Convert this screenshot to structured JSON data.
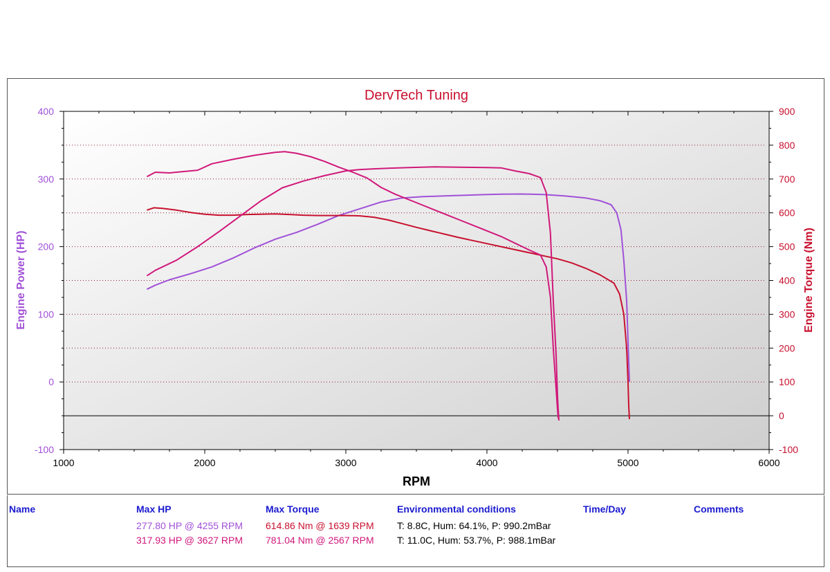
{
  "chart_data": {
    "type": "line",
    "title": "DervTech Tuning",
    "xlabel": "RPM",
    "ylabel_left": "Engine Power (HP)",
    "ylabel_right": "Engine Torque (Nm)",
    "xlim": [
      1000,
      6000
    ],
    "x_ticks": [
      1000,
      2000,
      3000,
      4000,
      5000,
      6000
    ],
    "ylim_left": [
      -100,
      400
    ],
    "y_ticks_left": [
      -100,
      0,
      100,
      200,
      300,
      400
    ],
    "ylim_right": [
      -100,
      900
    ],
    "y_ticks_right": [
      -100,
      0,
      100,
      200,
      300,
      400,
      500,
      600,
      700,
      800,
      900
    ],
    "grid": true,
    "colors": {
      "title": "#c8102e",
      "left_axis": "#a050d8",
      "right_axis": "#c8102e",
      "run1_power": "#a050d8",
      "run1_torque": "#c8102e",
      "run2_power": "#d0187a",
      "run2_torque": "#d0187a"
    },
    "series": [
      {
        "axis": "left",
        "color": "#a050d8",
        "x": [
          1590,
          1650,
          1750,
          1900,
          2050,
          2200,
          2350,
          2500,
          2650,
          2800,
          2950,
          3100,
          3250,
          3400,
          3550,
          3700,
          3850,
          4000,
          4100,
          4255,
          4400,
          4550,
          4700,
          4800,
          4880,
          4920,
          4950,
          4970,
          4990,
          5000,
          5010
        ],
        "y": [
          137,
          143,
          151,
          160,
          170,
          183,
          198,
          211,
          221,
          233,
          246,
          256,
          266,
          272,
          274,
          275,
          276,
          277,
          277.5,
          277.8,
          277,
          275,
          272,
          268,
          262,
          250,
          225,
          180,
          120,
          60,
          0
        ]
      },
      {
        "axis": "right",
        "color": "#c8102e",
        "x": [
          1590,
          1639,
          1700,
          1800,
          1900,
          2000,
          2100,
          2200,
          2300,
          2400,
          2500,
          2600,
          2700,
          2800,
          2900,
          3000,
          3100,
          3200,
          3300,
          3400,
          3500,
          3600,
          3700,
          3800,
          3900,
          4000,
          4100,
          4200,
          4300,
          4400,
          4500,
          4600,
          4700,
          4800,
          4900,
          4940,
          4970,
          4990,
          5000,
          5005,
          5010
        ],
        "y": [
          608,
          614.86,
          613,
          608,
          601,
          596,
          593,
          593,
          595,
          596,
          597,
          595,
          593,
          592,
          592,
          592,
          591,
          587,
          579,
          568,
          557,
          547,
          537,
          527,
          518,
          509,
          500,
          491,
          482,
          473,
          464,
          452,
          436,
          417,
          392,
          360,
          300,
          200,
          100,
          30,
          -10
        ]
      },
      {
        "axis": "left",
        "color": "#d0187a",
        "x": [
          1590,
          1650,
          1800,
          1950,
          2100,
          2250,
          2400,
          2550,
          2700,
          2850,
          3000,
          3100,
          3200,
          3300,
          3450,
          3627,
          3800,
          4000,
          4100,
          4200,
          4300,
          4380,
          4420,
          4450,
          4470,
          4490,
          4500,
          4505,
          4510
        ],
        "y": [
          157,
          165,
          180,
          200,
          222,
          245,
          268,
          287,
          297,
          305,
          312,
          314,
          315,
          316,
          317,
          317.93,
          317.5,
          317,
          316.5,
          312,
          308,
          302,
          280,
          220,
          120,
          40,
          -20,
          -40,
          -57
        ]
      },
      {
        "axis": "right",
        "color": "#d0187a",
        "x": [
          1590,
          1650,
          1750,
          1850,
          1950,
          2050,
          2200,
          2350,
          2500,
          2567,
          2650,
          2750,
          2850,
          2950,
          3050,
          3150,
          3250,
          3350,
          3500,
          3650,
          3800,
          3950,
          4100,
          4200,
          4300,
          4380,
          4420,
          4450,
          4470,
          4490,
          4500,
          4505,
          4510
        ],
        "y": [
          707,
          720,
          718,
          722,
          726,
          745,
          758,
          770,
          779,
          781.04,
          776,
          766,
          752,
          735,
          720,
          703,
          675,
          655,
          630,
          605,
          580,
          555,
          530,
          510,
          490,
          475,
          440,
          350,
          200,
          80,
          20,
          -5,
          -10
        ]
      }
    ]
  },
  "table": {
    "headers": {
      "name": "Name",
      "max_hp": "Max HP",
      "max_torque": "Max Torque",
      "env": "Environmental conditions",
      "time": "Time/Day",
      "comments": "Comments"
    },
    "rows": [
      {
        "hp": "277.80 HP @ 4255 RPM",
        "hp_color": "#a050d8",
        "torque": "614.86 Nm @ 1639 RPM",
        "torque_color": "#c8102e",
        "env": "T: 8.8C, Hum: 64.1%, P: 990.2mBar"
      },
      {
        "hp": "317.93 HP @ 3627 RPM",
        "hp_color": "#d0187a",
        "torque": "781.04 Nm @ 2567 RPM",
        "torque_color": "#d0187a",
        "env": "T: 11.0C, Hum: 53.7%, P: 988.1mBar"
      }
    ]
  }
}
